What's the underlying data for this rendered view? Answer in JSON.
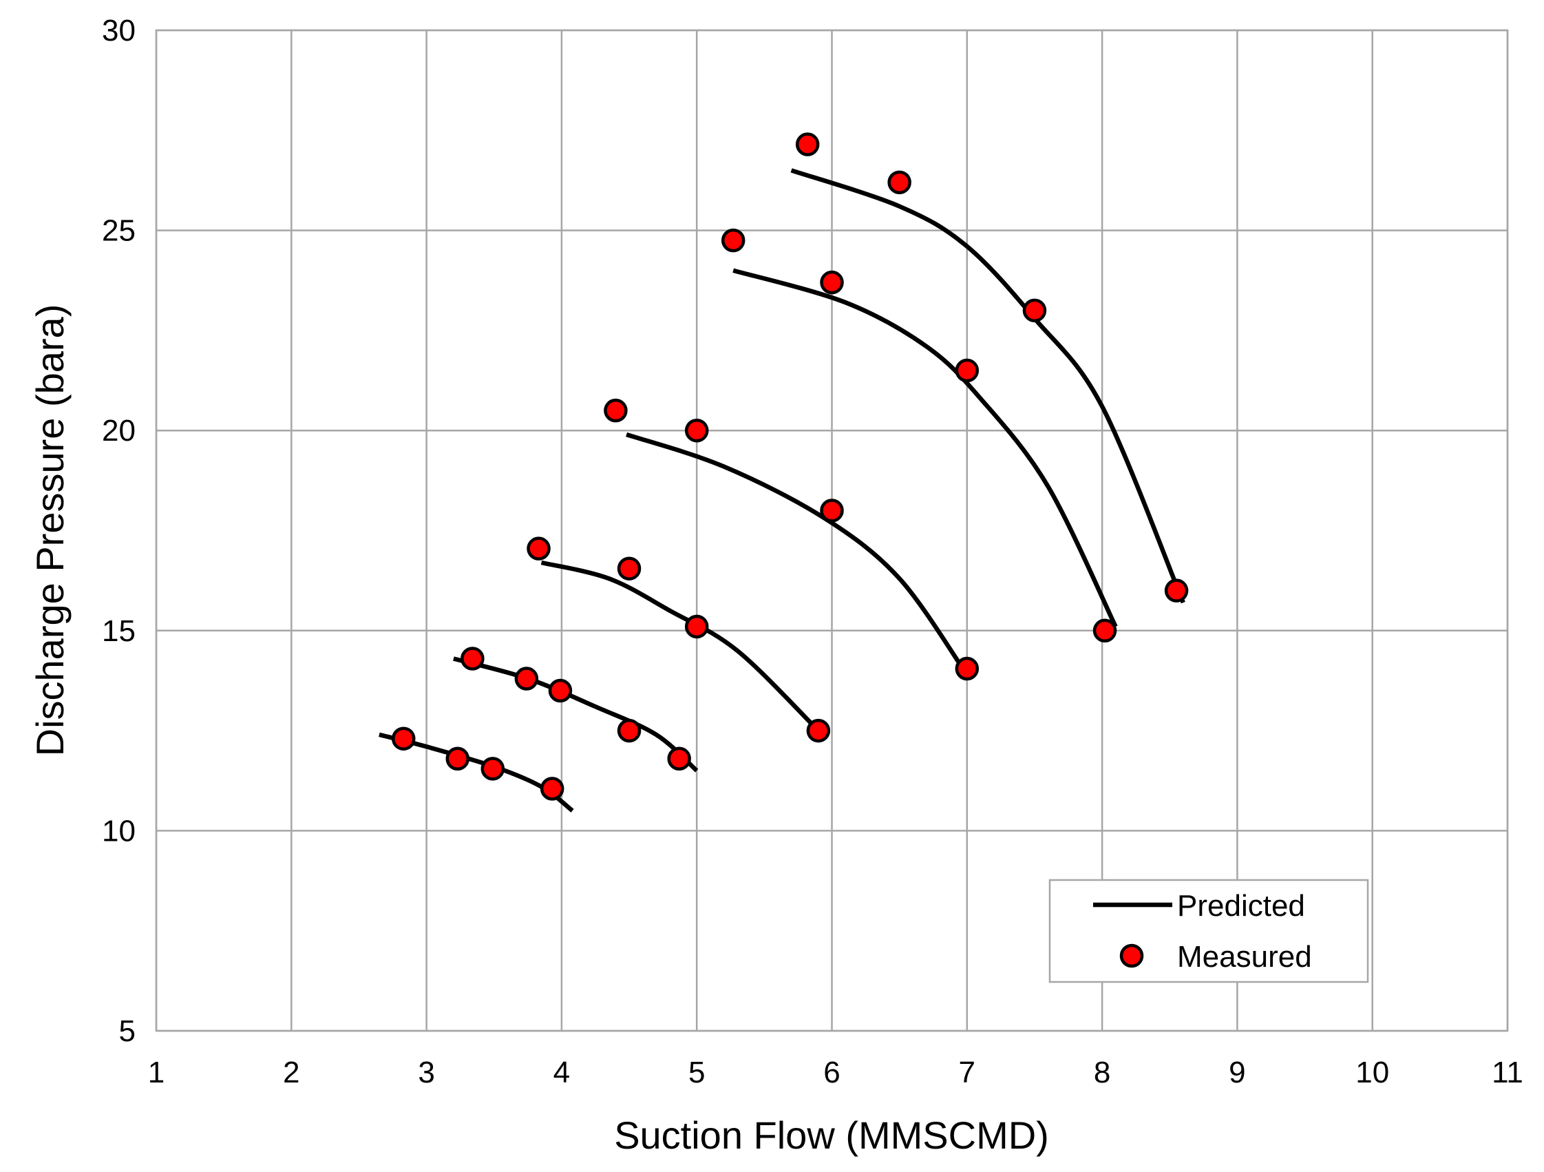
{
  "chart_data": {
    "type": "scatter",
    "title": "",
    "xlabel": "Suction Flow (MMSCMD)",
    "ylabel": "Discharge Pressure (bara)",
    "xlim": [
      1,
      11
    ],
    "ylim": [
      5,
      30
    ],
    "xticks": [
      1,
      2,
      3,
      4,
      5,
      6,
      7,
      8,
      9,
      10,
      11
    ],
    "yticks": [
      5,
      10,
      15,
      20,
      25,
      30
    ],
    "xtick_labels": [
      "1",
      "2",
      "3",
      "4",
      "5",
      "6",
      "7",
      "8",
      "9",
      "10",
      "11"
    ],
    "ytick_labels": [
      "5",
      "10",
      "15",
      "20",
      "25",
      "30"
    ],
    "grid": true,
    "legend": {
      "position": "bottom-right",
      "entries": [
        "Predicted",
        "Measured"
      ]
    },
    "colors": {
      "predicted": "#000000",
      "measured_fill": "#ff0000",
      "measured_edge": "#000000",
      "grid": "#a6a6a6"
    },
    "series": [
      {
        "name": "Predicted",
        "kind": "line",
        "curves": [
          [
            [
              2.65,
              12.4
            ],
            [
              3.0,
              12.1
            ],
            [
              3.5,
              11.6
            ],
            [
              3.85,
              11.1
            ],
            [
              4.08,
              10.5
            ]
          ],
          [
            [
              3.2,
              14.3
            ],
            [
              3.75,
              13.8
            ],
            [
              4.25,
              13.1
            ],
            [
              4.7,
              12.4
            ],
            [
              5.0,
              11.5
            ]
          ],
          [
            [
              3.85,
              16.7
            ],
            [
              4.35,
              16.3
            ],
            [
              4.8,
              15.5
            ],
            [
              5.3,
              14.5
            ],
            [
              5.9,
              12.5
            ]
          ],
          [
            [
              4.48,
              19.9
            ],
            [
              5.2,
              19.1
            ],
            [
              5.95,
              17.8
            ],
            [
              6.5,
              16.3
            ],
            [
              6.98,
              14.0
            ]
          ],
          [
            [
              5.27,
              24.0
            ],
            [
              6.1,
              23.2
            ],
            [
              6.7,
              22.1
            ],
            [
              7.1,
              20.8
            ],
            [
              7.6,
              18.6
            ],
            [
              8.1,
              15.1
            ]
          ],
          [
            [
              5.7,
              26.5
            ],
            [
              6.5,
              25.6
            ],
            [
              7.0,
              24.6
            ],
            [
              7.5,
              22.8
            ],
            [
              8.0,
              20.6
            ],
            [
              8.6,
              15.7
            ]
          ]
        ]
      },
      {
        "name": "Measured",
        "kind": "scatter",
        "points": [
          [
            2.83,
            12.3
          ],
          [
            3.23,
            11.8
          ],
          [
            3.49,
            11.55
          ],
          [
            3.93,
            11.05
          ],
          [
            3.34,
            14.3
          ],
          [
            3.74,
            13.8
          ],
          [
            3.99,
            13.5
          ],
          [
            4.5,
            12.5
          ],
          [
            4.87,
            11.8
          ],
          [
            3.83,
            17.05
          ],
          [
            4.5,
            16.55
          ],
          [
            5.0,
            15.1
          ],
          [
            5.9,
            12.5
          ],
          [
            4.4,
            20.5
          ],
          [
            5.0,
            20.0
          ],
          [
            6.0,
            18.0
          ],
          [
            7.0,
            14.05
          ],
          [
            5.27,
            24.75
          ],
          [
            6.0,
            23.7
          ],
          [
            7.0,
            21.5
          ],
          [
            8.02,
            15.0
          ],
          [
            5.82,
            27.15
          ],
          [
            6.5,
            26.2
          ],
          [
            7.5,
            23.0
          ],
          [
            8.55,
            16.0
          ]
        ]
      }
    ]
  }
}
